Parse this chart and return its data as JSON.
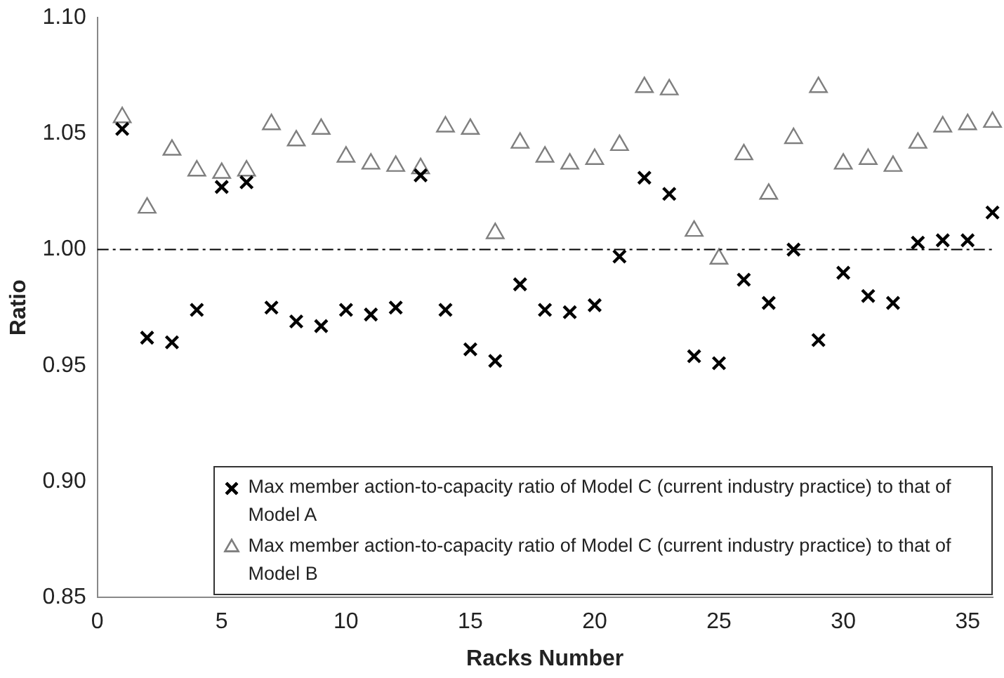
{
  "chart_data": {
    "type": "scatter",
    "xlabel": "Racks Number",
    "ylabel": "Ratio",
    "x": [
      1,
      2,
      3,
      4,
      5,
      6,
      7,
      8,
      9,
      10,
      11,
      12,
      13,
      14,
      15,
      16,
      17,
      18,
      19,
      20,
      21,
      22,
      23,
      24,
      25,
      26,
      27,
      28,
      29,
      30,
      31,
      32,
      33,
      34,
      35,
      36
    ],
    "series": [
      {
        "name": "Max member action-to-capacity ratio of Model C (current industry practice) to that of Model A",
        "color": "#000000",
        "marker": "cross",
        "values": [
          1.052,
          0.962,
          0.96,
          0.974,
          1.027,
          1.029,
          0.975,
          0.969,
          0.967,
          0.974,
          0.972,
          0.975,
          1.032,
          0.974,
          0.957,
          0.952,
          0.985,
          0.974,
          0.973,
          0.976,
          0.997,
          1.031,
          1.024,
          0.954,
          0.951,
          0.987,
          0.977,
          1.0,
          0.961,
          0.99,
          0.98,
          0.977,
          1.003,
          1.004,
          1.004,
          1.016
        ]
      },
      {
        "name": "Max member action-to-capacity ratio of Model C (current industry practice) to that of Model B",
        "color": "#7f7f7f",
        "marker": "triangle",
        "values": [
          1.057,
          1.018,
          1.043,
          1.034,
          1.033,
          1.034,
          1.054,
          1.047,
          1.052,
          1.04,
          1.037,
          1.036,
          1.035,
          1.053,
          1.052,
          1.007,
          1.046,
          1.04,
          1.037,
          1.039,
          1.045,
          1.07,
          1.069,
          1.008,
          0.996,
          1.041,
          1.024,
          1.048,
          1.07,
          1.037,
          1.039,
          1.036,
          1.046,
          1.053,
          1.054,
          1.055
        ]
      }
    ],
    "xlim": [
      0,
      36
    ],
    "xticks": [
      0,
      5,
      10,
      15,
      20,
      25,
      30,
      35
    ],
    "ylim": [
      0.85,
      1.1
    ],
    "yticks": [
      {
        "value": 0.85,
        "label": "0.85"
      },
      {
        "value": 0.9,
        "label": "0.90"
      },
      {
        "value": 0.95,
        "label": "0.95"
      },
      {
        "value": 1.0,
        "label": "1.00"
      },
      {
        "value": 1.05,
        "label": "1.05"
      },
      {
        "value": 1.1,
        "label": "1.10"
      }
    ],
    "ref_lines": [
      {
        "axis": "y",
        "value": 1.0,
        "color": "#000000",
        "line_style": "dashdot"
      }
    ],
    "grid": false,
    "legend": "bottom right"
  }
}
